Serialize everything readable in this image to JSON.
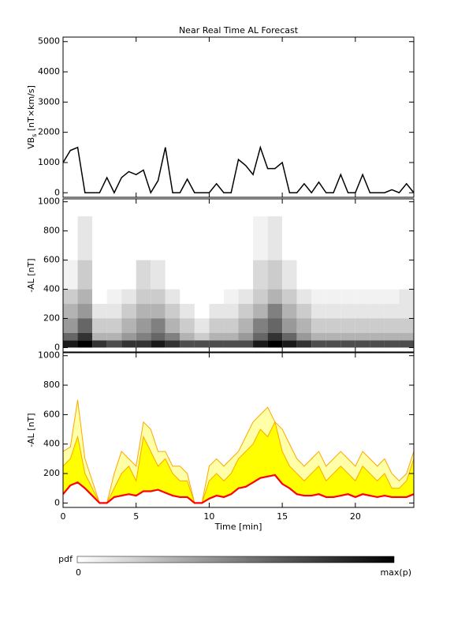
{
  "chart_data": [
    {
      "type": "line",
      "title": "Near Real Time AL Forecast",
      "ylabel": {
        "main": "VB",
        "sub": "s",
        "rest": " [nT×km/s]"
      },
      "x": [
        0,
        0.5,
        1,
        1.5,
        2,
        2.5,
        3,
        3.5,
        4,
        4.5,
        5,
        5.5,
        6,
        6.5,
        7,
        7.5,
        8,
        8.5,
        9,
        9.5,
        10,
        10.5,
        11,
        11.5,
        12,
        12.5,
        13,
        13.5,
        14,
        14.5,
        15,
        15.5,
        16,
        16.5,
        17,
        17.5,
        18,
        18.5,
        19,
        19.5,
        20,
        20.5,
        21,
        21.5,
        22,
        22.5,
        23,
        23.5,
        24
      ],
      "series": [
        {
          "color": "#000000",
          "values": [
            1000,
            1400,
            1500,
            0,
            0,
            0,
            500,
            0,
            500,
            700,
            600,
            750,
            0,
            400,
            1500,
            0,
            0,
            450,
            0,
            0,
            0,
            300,
            0,
            0,
            1100,
            900,
            600,
            1500,
            800,
            800,
            1000,
            0,
            0,
            300,
            0,
            350,
            0,
            0,
            600,
            0,
            0,
            600,
            0,
            0,
            0,
            100,
            0,
            300,
            0
          ]
        }
      ],
      "xlim": [
        0,
        24
      ],
      "ylim": [
        -150,
        5150
      ],
      "yticks": [
        0,
        1000,
        2000,
        3000,
        4000,
        5000
      ]
    },
    {
      "type": "heatmap",
      "ylabel": "-AL [nT]",
      "xbins": [
        0,
        1,
        2,
        3,
        4,
        5,
        6,
        7,
        8,
        9,
        10,
        11,
        12,
        13,
        14,
        15,
        16,
        17,
        18,
        19,
        20,
        21,
        22,
        23,
        24
      ],
      "ybins": [
        0,
        50,
        100,
        200,
        300,
        400,
        600,
        900
      ],
      "z": [
        [
          0.9,
          1,
          0.8,
          0.7,
          0.8,
          0.8,
          0.9,
          0.8,
          0.7,
          0.7,
          0.7,
          0.7,
          0.7,
          0.9,
          1,
          0.9,
          0.8,
          0.7,
          0.7,
          0.7,
          0.7,
          0.7,
          0.7,
          0.7
        ],
        [
          0.6,
          0.8,
          0.3,
          0.3,
          0.4,
          0.5,
          0.6,
          0.5,
          0.3,
          0.2,
          0.3,
          0.3,
          0.4,
          0.6,
          0.8,
          0.6,
          0.4,
          0.3,
          0.3,
          0.3,
          0.3,
          0.3,
          0.3,
          0.3
        ],
        [
          0.4,
          0.6,
          0.2,
          0.2,
          0.3,
          0.4,
          0.5,
          0.3,
          0.2,
          0.1,
          0.2,
          0.2,
          0.3,
          0.5,
          0.6,
          0.4,
          0.3,
          0.2,
          0.2,
          0.2,
          0.2,
          0.2,
          0.2,
          0.2
        ],
        [
          0.3,
          0.4,
          0.1,
          0.1,
          0.2,
          0.3,
          0.3,
          0.2,
          0.1,
          0,
          0.1,
          0.1,
          0.2,
          0.3,
          0.5,
          0.3,
          0.2,
          0.1,
          0.1,
          0.1,
          0.1,
          0.1,
          0.1,
          0.1
        ],
        [
          0.2,
          0.3,
          0,
          0.05,
          0.1,
          0.2,
          0.2,
          0.1,
          0,
          0,
          0,
          0.05,
          0.1,
          0.2,
          0.3,
          0.2,
          0.1,
          0.05,
          0.05,
          0.05,
          0.05,
          0.05,
          0.05,
          0.1
        ],
        [
          0.05,
          0.2,
          0,
          0,
          0,
          0.15,
          0.1,
          0,
          0,
          0,
          0,
          0,
          0,
          0.15,
          0.2,
          0.1,
          0,
          0,
          0,
          0,
          0,
          0,
          0,
          0
        ],
        [
          0,
          0.1,
          0,
          0,
          0,
          0,
          0,
          0,
          0,
          0,
          0,
          0,
          0,
          0.05,
          0.1,
          0,
          0,
          0,
          0,
          0,
          0,
          0,
          0,
          0
        ]
      ],
      "xlim": [
        0,
        24
      ],
      "ylim": [
        -30,
        1020
      ],
      "yticks": [
        0,
        200,
        400,
        600,
        800,
        1000
      ]
    },
    {
      "type": "band",
      "ylabel": "-AL [nT]",
      "xlabel": "Time [min]",
      "x": [
        0,
        0.5,
        1,
        1.5,
        2,
        2.5,
        3,
        3.5,
        4,
        4.5,
        5,
        5.5,
        6,
        6.5,
        7,
        7.5,
        8,
        8.5,
        9,
        9.5,
        10,
        10.5,
        11,
        11.5,
        12,
        12.5,
        13,
        13.5,
        14,
        14.5,
        15,
        15.5,
        16,
        16.5,
        17,
        17.5,
        18,
        18.5,
        19,
        19.5,
        20,
        20.5,
        21,
        21.5,
        22,
        22.5,
        23,
        23.5,
        24
      ],
      "series": [
        {
          "color": "#ffffa8",
          "line_color": "#ffa500",
          "values": [
            350,
            380,
            700,
            300,
            150,
            0,
            0,
            200,
            350,
            300,
            250,
            550,
            500,
            350,
            350,
            250,
            250,
            200,
            0,
            0,
            250,
            300,
            250,
            300,
            350,
            450,
            550,
            600,
            650,
            550,
            500,
            400,
            300,
            250,
            300,
            350,
            250,
            300,
            350,
            300,
            250,
            350,
            300,
            250,
            300,
            200,
            150,
            200,
            350
          ]
        },
        {
          "color": "#ffff00",
          "line_color": "#ffa500",
          "values": [
            250,
            300,
            450,
            200,
            100,
            0,
            0,
            100,
            200,
            250,
            150,
            450,
            350,
            250,
            300,
            200,
            150,
            150,
            0,
            0,
            150,
            200,
            150,
            200,
            300,
            350,
            400,
            500,
            450,
            550,
            350,
            250,
            200,
            150,
            200,
            250,
            150,
            200,
            250,
            200,
            150,
            250,
            200,
            150,
            200,
            100,
            100,
            150,
            300
          ]
        },
        {
          "color": "#ffffff",
          "line_color": "#ff0000",
          "values": [
            60,
            120,
            140,
            100,
            50,
            0,
            0,
            40,
            50,
            60,
            50,
            80,
            80,
            90,
            70,
            50,
            40,
            40,
            0,
            0,
            30,
            50,
            40,
            60,
            100,
            110,
            140,
            170,
            180,
            190,
            130,
            100,
            60,
            50,
            50,
            60,
            40,
            40,
            50,
            60,
            40,
            60,
            50,
            40,
            50,
            40,
            40,
            40,
            60
          ]
        }
      ],
      "xlim": [
        0,
        24
      ],
      "ylim": [
        -30,
        1020
      ],
      "yticks": [
        0,
        200,
        400,
        600,
        800,
        1000
      ],
      "xticks": [
        0,
        5,
        10,
        15,
        20
      ]
    }
  ],
  "colorbar": {
    "label": "pdf",
    "min_label": "0",
    "max_label": "max(p)"
  }
}
